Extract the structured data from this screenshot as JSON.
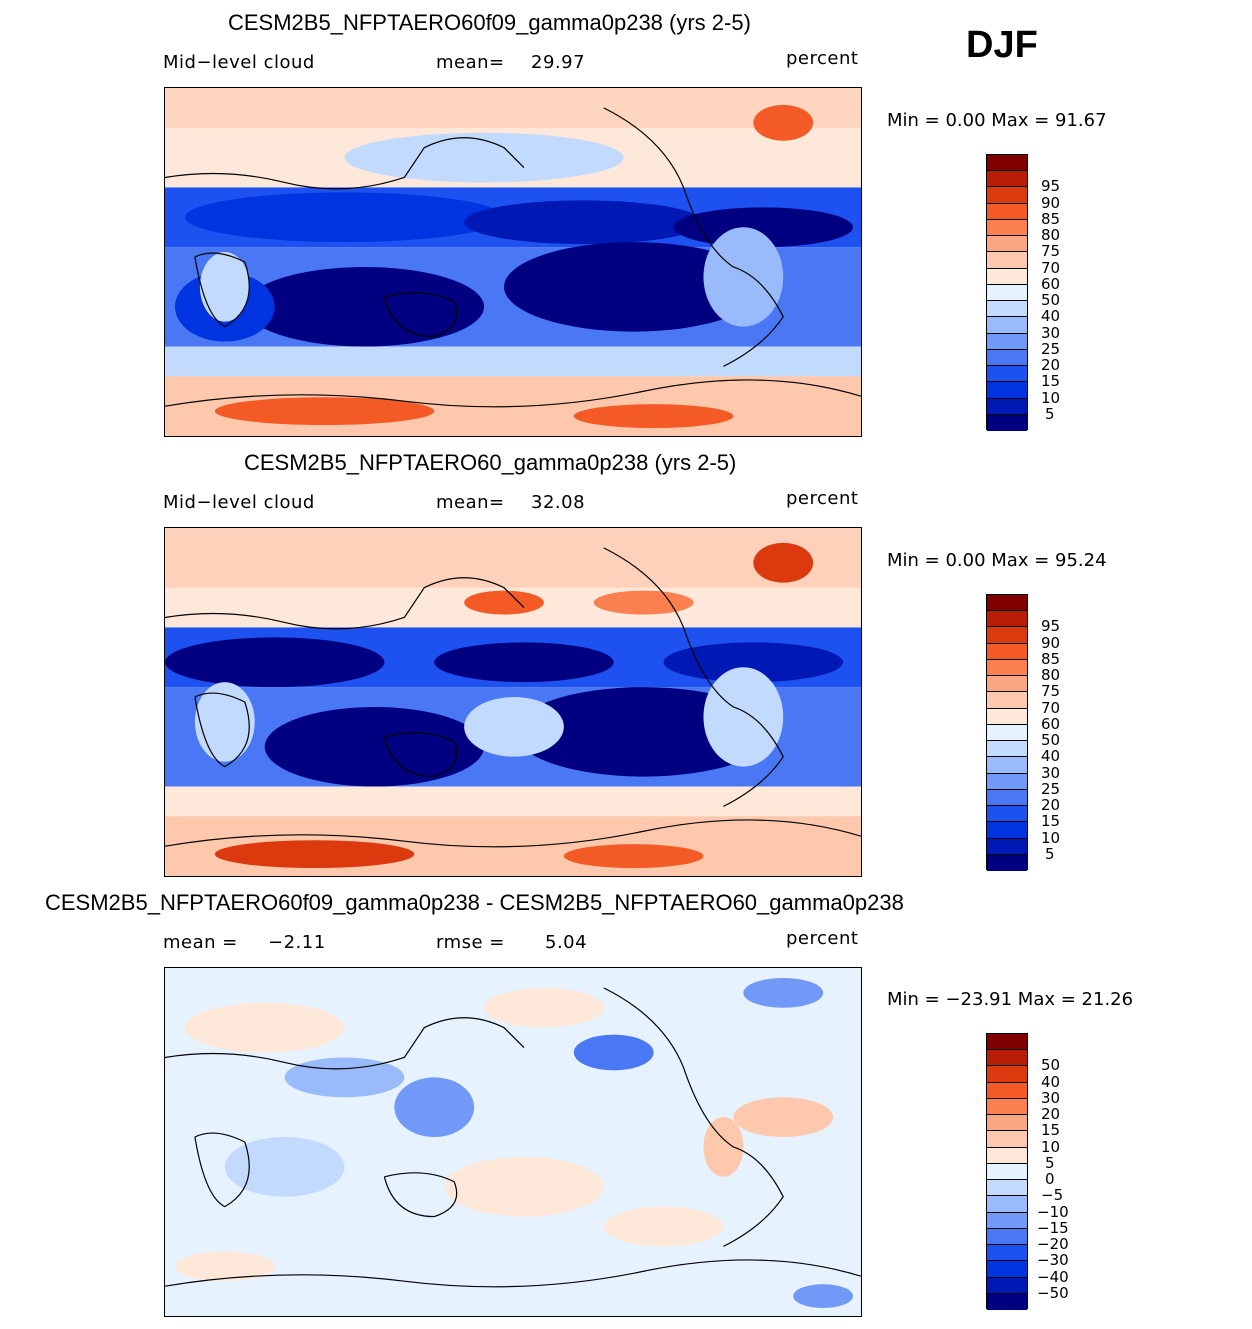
{
  "season": "DJF",
  "units": "percent",
  "panels": [
    {
      "title": "CESM2B5_NFPTAERO60f09_gamma0p238 (yrs 2-5)",
      "variable": "Mid−level cloud",
      "stat1_label": "mean=",
      "stat1_value": "29.97",
      "units": "percent",
      "minmax": "Min =    0.00  Max =   91.67",
      "colors": [
        "#000080",
        "#0018b4",
        "#0034e0",
        "#1e52f0",
        "#4a78f5",
        "#7299f8",
        "#9abbfb",
        "#c2dafd",
        "#e6f2fe",
        "#fee8da",
        "#fdc8ac",
        "#fca784",
        "#fb8050",
        "#f45a26",
        "#dc3a0e",
        "#b81e06",
        "#800000"
      ],
      "levels": [
        "5",
        "10",
        "15",
        "20",
        "25",
        "30",
        "40",
        "50",
        "60",
        "70",
        "75",
        "80",
        "85",
        "90",
        "95"
      ]
    },
    {
      "title": "CESM2B5_NFPTAERO60_gamma0p238 (yrs 2-5)",
      "variable": "Mid−level cloud",
      "stat1_label": "mean=",
      "stat1_value": "32.08",
      "units": "percent",
      "minmax": "Min =    0.00  Max =   95.24",
      "colors": [
        "#000080",
        "#0018b4",
        "#0034e0",
        "#1e52f0",
        "#4a78f5",
        "#7299f8",
        "#9abbfb",
        "#c2dafd",
        "#e6f2fe",
        "#fee8da",
        "#fdc8ac",
        "#fca784",
        "#fb8050",
        "#f45a26",
        "#dc3a0e",
        "#b81e06",
        "#800000"
      ],
      "levels": [
        "5",
        "10",
        "15",
        "20",
        "25",
        "30",
        "40",
        "50",
        "60",
        "70",
        "75",
        "80",
        "85",
        "90",
        "95"
      ]
    },
    {
      "title": "CESM2B5_NFPTAERO60f09_gamma0p238 - CESM2B5_NFPTAERO60_gamma0p238",
      "variable": "mean  =",
      "stat1_label": "rmse  =",
      "variable_value": "−2.11",
      "stat1_value": "5.04",
      "units": "percent",
      "minmax": "Min = −23.91  Max =   21.26",
      "colors": [
        "#000080",
        "#0018b4",
        "#0034e0",
        "#1e52f0",
        "#4a78f5",
        "#7299f8",
        "#9abbfb",
        "#c2dafd",
        "#e6f2fe",
        "#fee8da",
        "#fdc8ac",
        "#fca784",
        "#fb8050",
        "#f45a26",
        "#dc3a0e",
        "#b81e06",
        "#800000"
      ],
      "levels": [
        "−50",
        "−40",
        "−30",
        "−20",
        "−15",
        "−10",
        "−5",
        "0",
        "5",
        "10",
        "15",
        "20",
        "30",
        "40",
        "50"
      ]
    }
  ],
  "chart_data": [
    {
      "type": "heatmap",
      "title": "CESM2B5_NFPTAERO60f09_gamma0p238 (yrs 2-5)",
      "variable": "Mid-level cloud",
      "units": "percent",
      "mean": 29.97,
      "min": 0.0,
      "max": 91.67,
      "levels": [
        5,
        10,
        15,
        20,
        25,
        30,
        40,
        50,
        60,
        70,
        75,
        80,
        85,
        90,
        95
      ],
      "lon_range": [
        0,
        360
      ],
      "lat_range": [
        -90,
        90
      ]
    },
    {
      "type": "heatmap",
      "title": "CESM2B5_NFPTAERO60_gamma0p238 (yrs 2-5)",
      "variable": "Mid-level cloud",
      "units": "percent",
      "mean": 32.08,
      "min": 0.0,
      "max": 95.24,
      "levels": [
        5,
        10,
        15,
        20,
        25,
        30,
        40,
        50,
        60,
        70,
        75,
        80,
        85,
        90,
        95
      ],
      "lon_range": [
        0,
        360
      ],
      "lat_range": [
        -90,
        90
      ]
    },
    {
      "type": "heatmap",
      "title": "CESM2B5_NFPTAERO60f09_gamma0p238 - CESM2B5_NFPTAERO60_gamma0p238",
      "units": "percent",
      "mean": -2.11,
      "rmse": 5.04,
      "min": -23.91,
      "max": 21.26,
      "levels": [
        -50,
        -40,
        -30,
        -20,
        -15,
        -10,
        -5,
        0,
        5,
        10,
        15,
        20,
        30,
        40,
        50
      ],
      "lon_range": [
        0,
        360
      ],
      "lat_range": [
        -90,
        90
      ]
    }
  ]
}
